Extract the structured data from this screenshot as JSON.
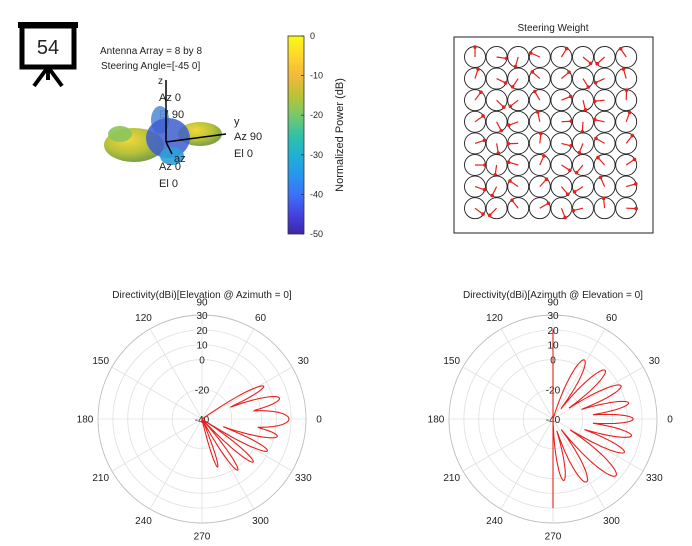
{
  "slide": {
    "number": "54",
    "colors": {
      "board": "#000000"
    }
  },
  "pattern3d": {
    "info_line1": "Antenna Array = 8 by 8",
    "info_line2": "Steering Angle=[-45 0]",
    "axis_z": {
      "name": "z",
      "az": "Az 0",
      "el": "El 90"
    },
    "axis_y": {
      "name": "y",
      "az": "Az 90",
      "el": "El 0"
    },
    "axis_x": {
      "name": "az",
      "az": "Az 0",
      "el": "El 0"
    }
  },
  "colorbar": {
    "label": "Normalized Power (dB)",
    "ticks": [
      "0",
      "-10",
      "-20",
      "-30",
      "-40",
      "-50"
    ],
    "range": [
      -50,
      0
    ],
    "colormap": [
      "#3e26a8",
      "#4543e0",
      "#3a73f8",
      "#2797eb",
      "#1fb1d4",
      "#33c1a5",
      "#77c96a",
      "#bdc235",
      "#f2b93a",
      "#fed72b",
      "#f9fb15"
    ]
  },
  "steering": {
    "title": "Steering Weight",
    "rows": 8,
    "cols": 8,
    "marker_color": "#e8201c"
  },
  "chart_data": [
    {
      "type": "polar",
      "title": "Directivity(dBi)[Elevation @ Azimuth = 0]",
      "angle_ticks": [
        "0",
        "30",
        "60",
        "90",
        "120",
        "150",
        "180",
        "210",
        "240",
        "270",
        "300",
        "330"
      ],
      "radial_ticks": [
        "-40",
        "-20",
        "0",
        "10",
        "20",
        "30"
      ],
      "r_range": [
        -40,
        30
      ],
      "series_color": "#e8201c",
      "lobes": [
        {
          "angle": 0,
          "peak": 18.5,
          "width": 13
        },
        {
          "angle": 15,
          "peak": 14,
          "width": 9
        },
        {
          "angle": 28,
          "peak": 7,
          "width": 7
        },
        {
          "angle": -13,
          "peak": 12,
          "width": 8
        },
        {
          "angle": -26,
          "peak": 9,
          "width": 7
        },
        {
          "angle": -40,
          "peak": 5,
          "width": 7
        },
        {
          "angle": -55,
          "peak": 2,
          "width": 7
        },
        {
          "angle": -72,
          "peak": -6,
          "width": 6
        }
      ]
    },
    {
      "type": "polar",
      "title": "Directivity(dBi)[Azimuth @ Elevation = 0]",
      "angle_ticks": [
        "0",
        "30",
        "60",
        "90",
        "120",
        "150",
        "180",
        "210",
        "240",
        "270",
        "300",
        "330"
      ],
      "radial_ticks": [
        "-40",
        "-20",
        "0",
        "10",
        "20",
        "30"
      ],
      "r_range": [
        -40,
        30
      ],
      "series_color": "#e8201c",
      "back_wall": true,
      "lobes": [
        {
          "angle": 0,
          "peak": 14,
          "width": 8
        },
        {
          "angle": 12,
          "peak": 12,
          "width": 8
        },
        {
          "angle": 26,
          "peak": 11,
          "width": 9
        },
        {
          "angle": 43,
          "peak": 8,
          "width": 10
        },
        {
          "angle": 62,
          "peak": 5,
          "width": 11
        },
        {
          "angle": -12,
          "peak": 14,
          "width": 8
        },
        {
          "angle": -25,
          "peak": 13,
          "width": 8
        },
        {
          "angle": -42,
          "peak": 17,
          "width": 10
        },
        {
          "angle": -62,
          "peak": 8,
          "width": 11
        },
        {
          "angle": -80,
          "peak": 2,
          "width": 9
        }
      ]
    }
  ]
}
